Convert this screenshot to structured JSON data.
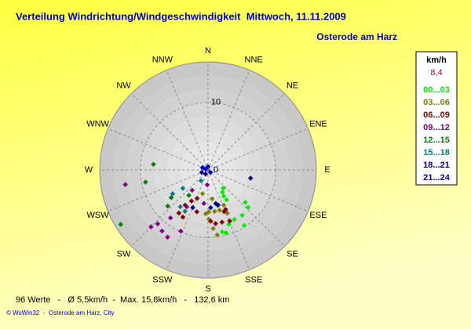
{
  "chart_data": {
    "type": "polar",
    "title": "Verteilung Windrichtung/Windgeschwindigkeit  Mittwoch, 11.11.2009",
    "subtitle": "Osterode am Harz",
    "directions": [
      "N",
      "NNE",
      "NE",
      "ENE",
      "E",
      "ESE",
      "SE",
      "SSE",
      "S",
      "SSW",
      "SW",
      "WSW",
      "W",
      "WNW",
      "NW",
      "NNW"
    ],
    "rlim": [
      0,
      16
    ],
    "rticks": [
      0,
      10
    ],
    "grid": true,
    "legend_title": "km/h",
    "legend_value": {
      "value": 8.4,
      "label": "8,4"
    },
    "legend_position": "right",
    "series": [
      {
        "name": "00...03",
        "color": "#00ee00",
        "theta": [
          147,
          149,
          148,
          131,
          133,
          143,
          152,
          159,
          167,
          164,
          147,
          140
        ],
        "r": [
          3.9,
          4.5,
          5.2,
          7.3,
          8.1,
          8.4,
          8.3,
          8.6,
          9.4,
          9.7,
          9.8,
          3.5
        ]
      },
      {
        "name": "03...06",
        "color": "#808000",
        "theta": [
          193,
          172,
          165,
          171,
          179,
          164,
          179,
          175,
          172,
          183,
          156,
          156
        ],
        "r": [
          3.6,
          4.3,
          5.4,
          6.2,
          6.2,
          6.2,
          7.3,
          8.7,
          9.7,
          6.5,
          5.7,
          7.0
        ]
      },
      {
        "name": "06...09",
        "color": "#800000",
        "theta": [
          156,
          157,
          165,
          201,
          195,
          208,
          208,
          213,
          214,
          177,
          172,
          159
        ],
        "r": [
          6.4,
          8.2,
          8.0,
          4.5,
          6.4,
          5.2,
          7.9,
          6.2,
          7.7,
          7.6,
          8.0,
          6.6
        ]
      },
      {
        "name": "09...12",
        "color": "#800080",
        "theta": [
          260,
          225,
          223,
          217,
          211,
          218,
          204,
          187,
          183,
          218,
          210
        ],
        "r": [
          12.4,
          11.9,
          10.9,
          11.3,
          11.6,
          9.0,
          9.9,
          5.0,
          2.2,
          3.8,
          6.3
        ]
      },
      {
        "name": "12...15",
        "color": "#008000",
        "theta": [
          276,
          259,
          238,
          228,
          233,
          217
        ],
        "r": [
          8.1,
          9.4,
          15.2,
          8.0,
          6.8,
          4.7
        ]
      },
      {
        "name": "15...18",
        "color": "#008080",
        "theta": [
          236,
          234,
          209,
          217,
          213
        ],
        "r": [
          6.3,
          4.6,
          7.0,
          6.8,
          1.9
        ]
      },
      {
        "name": "18...21",
        "color": "#000080",
        "theta": [
          211,
          249,
          176,
          167,
          164,
          101,
          202
        ],
        "r": [
          0.7,
          1.0,
          5.6,
          5.1,
          5.4,
          6.4,
          6.0
        ]
      },
      {
        "name": "21...24",
        "color": "#0000cc",
        "theta": [
          0,
          135,
          288,
          293
        ],
        "r": [
          0.5,
          0.5,
          0.4,
          0.9
        ]
      }
    ],
    "footer": "96 Werte   -   Ø 5,5km/h  -  Max. 15,8km/h   -   132,6 km",
    "credit": "© WsWin32  -  Osterode am Harz, City"
  }
}
